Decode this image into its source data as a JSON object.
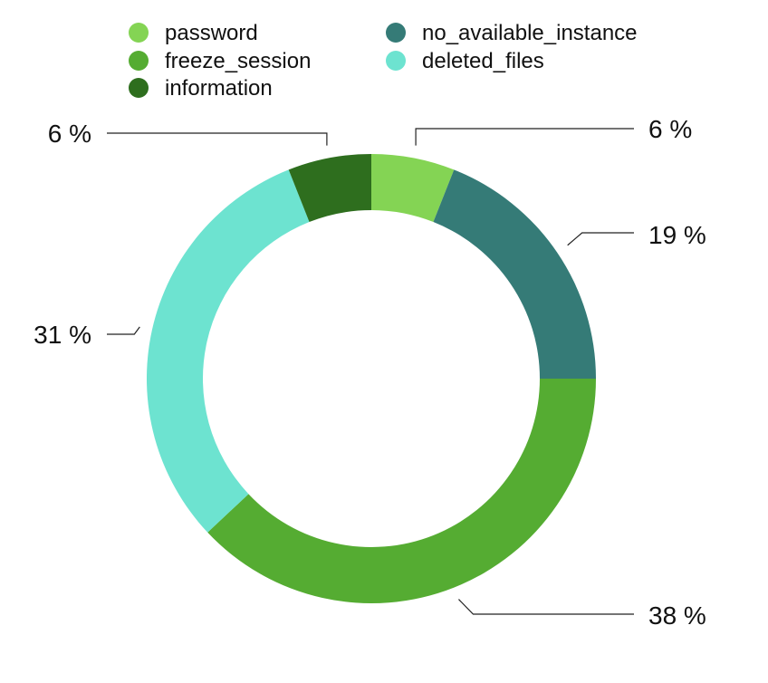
{
  "chart_data": {
    "type": "pie",
    "variant": "donut",
    "series": [
      {
        "name": "password",
        "value": 6,
        "label": "6 %",
        "color": "#84d454"
      },
      {
        "name": "no_available_instance",
        "value": 19,
        "label": "19 %",
        "color": "#357b77"
      },
      {
        "name": "freeze_session",
        "value": 38,
        "label": "38 %",
        "color": "#55ac32"
      },
      {
        "name": "deleted_files",
        "value": 31,
        "label": "31 %",
        "color": "#6de3d0"
      },
      {
        "name": "information",
        "value": 6,
        "label": "6 %",
        "color": "#2e6e1e"
      }
    ],
    "legend": {
      "placement": "top",
      "order": [
        "password",
        "freeze_session",
        "information",
        "no_available_instance",
        "deleted_files"
      ]
    }
  }
}
